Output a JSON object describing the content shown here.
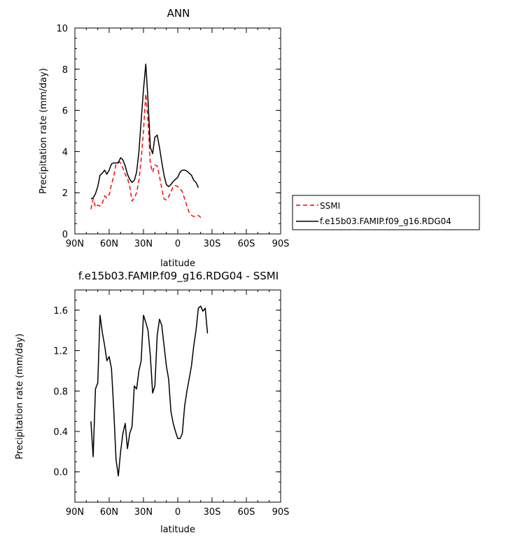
{
  "chart_data": [
    {
      "type": "line",
      "title": "ANN",
      "xlabel": "latitude",
      "ylabel": "Precipitation rate (mm/day)",
      "xlim": [
        90,
        -90
      ],
      "ylim": [
        0,
        10
      ],
      "xticks": [
        {
          "v": 90,
          "label": "90N"
        },
        {
          "v": 60,
          "label": "60N"
        },
        {
          "v": 30,
          "label": "30N"
        },
        {
          "v": 0,
          "label": "0"
        },
        {
          "v": -30,
          "label": "30S"
        },
        {
          "v": -60,
          "label": "60S"
        },
        {
          "v": -90,
          "label": "90S"
        }
      ],
      "yticks": [
        {
          "v": 0,
          "label": "0"
        },
        {
          "v": 2,
          "label": "2"
        },
        {
          "v": 4,
          "label": "4"
        },
        {
          "v": 6,
          "label": "6"
        },
        {
          "v": 8,
          "label": "8"
        },
        {
          "v": 10,
          "label": "10"
        }
      ],
      "legend_position": "right",
      "series": [
        {
          "name": "SSMI",
          "color": "#ff0000",
          "dash": "dashed",
          "points": [
            [
              76,
              1.2
            ],
            [
              74,
              1.7
            ],
            [
              72,
              1.3
            ],
            [
              70,
              1.4
            ],
            [
              68,
              1.35
            ],
            [
              66,
              1.5
            ],
            [
              64,
              1.85
            ],
            [
              62,
              1.75
            ],
            [
              60,
              1.9
            ],
            [
              58,
              2.4
            ],
            [
              56,
              2.8
            ],
            [
              54,
              3.4
            ],
            [
              52,
              3.5
            ],
            [
              50,
              3.45
            ],
            [
              48,
              3.2
            ],
            [
              46,
              2.9
            ],
            [
              44,
              2.7
            ],
            [
              42,
              2.3
            ],
            [
              40,
              1.6
            ],
            [
              38,
              1.75
            ],
            [
              36,
              2.0
            ],
            [
              34,
              2.6
            ],
            [
              32,
              3.6
            ],
            [
              30,
              5.0
            ],
            [
              28,
              6.8
            ],
            [
              26,
              5.5
            ],
            [
              24,
              3.4
            ],
            [
              22,
              3.0
            ],
            [
              20,
              3.35
            ],
            [
              18,
              3.3
            ],
            [
              16,
              2.8
            ],
            [
              14,
              2.2
            ],
            [
              12,
              1.7
            ],
            [
              10,
              1.65
            ],
            [
              8,
              1.8
            ],
            [
              6,
              2.05
            ],
            [
              4,
              2.3
            ],
            [
              2,
              2.35
            ],
            [
              0,
              2.3
            ],
            [
              -2,
              2.2
            ],
            [
              -4,
              2.05
            ],
            [
              -6,
              1.7
            ],
            [
              -8,
              1.35
            ],
            [
              -10,
              1.05
            ],
            [
              -12,
              0.9
            ],
            [
              -14,
              0.85
            ],
            [
              -16,
              0.85
            ],
            [
              -18,
              0.9
            ],
            [
              -20,
              0.8
            ],
            [
              -22,
              0.7
            ]
          ]
        },
        {
          "name": "f.e15b03.FAMIP.f09_g16.RDG04",
          "color": "#000000",
          "dash": "solid",
          "points": [
            [
              76,
              1.7
            ],
            [
              74,
              1.75
            ],
            [
              72,
              1.95
            ],
            [
              70,
              2.3
            ],
            [
              68,
              2.85
            ],
            [
              66,
              2.95
            ],
            [
              64,
              3.1
            ],
            [
              62,
              2.9
            ],
            [
              60,
              3.1
            ],
            [
              58,
              3.4
            ],
            [
              56,
              3.45
            ],
            [
              54,
              3.45
            ],
            [
              52,
              3.45
            ],
            [
              50,
              3.7
            ],
            [
              48,
              3.6
            ],
            [
              46,
              3.3
            ],
            [
              44,
              2.9
            ],
            [
              42,
              2.65
            ],
            [
              40,
              2.5
            ],
            [
              38,
              2.6
            ],
            [
              36,
              3.0
            ],
            [
              34,
              4.0
            ],
            [
              32,
              5.5
            ],
            [
              30,
              7.0
            ],
            [
              28,
              8.25
            ],
            [
              26,
              6.5
            ],
            [
              24,
              4.2
            ],
            [
              22,
              3.9
            ],
            [
              20,
              4.7
            ],
            [
              18,
              4.8
            ],
            [
              16,
              4.2
            ],
            [
              14,
              3.5
            ],
            [
              12,
              2.85
            ],
            [
              10,
              2.4
            ],
            [
              8,
              2.3
            ],
            [
              6,
              2.4
            ],
            [
              4,
              2.55
            ],
            [
              2,
              2.65
            ],
            [
              0,
              2.75
            ],
            [
              -2,
              3.0
            ],
            [
              -4,
              3.1
            ],
            [
              -6,
              3.1
            ],
            [
              -8,
              3.05
            ],
            [
              -10,
              2.95
            ],
            [
              -12,
              2.85
            ],
            [
              -14,
              2.6
            ],
            [
              -16,
              2.5
            ],
            [
              -18,
              2.25
            ]
          ]
        }
      ]
    },
    {
      "type": "line",
      "title": "f.e15b03.FAMIP.f09_g16.RDG04 - SSMI",
      "xlabel": "latitude",
      "ylabel": "Precipitation rate (mm/day)",
      "xlim": [
        90,
        -90
      ],
      "ylim": [
        -0.3,
        1.8
      ],
      "xticks": [
        {
          "v": 90,
          "label": "90N"
        },
        {
          "v": 60,
          "label": "60N"
        },
        {
          "v": 30,
          "label": "30N"
        },
        {
          "v": 0,
          "label": "0"
        },
        {
          "v": -30,
          "label": "30S"
        },
        {
          "v": -60,
          "label": "60S"
        },
        {
          "v": -90,
          "label": "90S"
        }
      ],
      "yticks": [
        {
          "v": 0.0,
          "label": "0.0"
        },
        {
          "v": 0.4,
          "label": "0.4"
        },
        {
          "v": 0.8,
          "label": "0.8"
        },
        {
          "v": 1.2,
          "label": "1.2"
        },
        {
          "v": 1.6,
          "label": "1.6"
        }
      ],
      "series": [
        {
          "name": "",
          "color": "#000000",
          "dash": "solid",
          "points": [
            [
              76,
              0.5
            ],
            [
              74,
              0.15
            ],
            [
              72,
              0.82
            ],
            [
              70,
              0.88
            ],
            [
              68,
              1.55
            ],
            [
              66,
              1.38
            ],
            [
              64,
              1.25
            ],
            [
              62,
              1.1
            ],
            [
              60,
              1.14
            ],
            [
              58,
              1.02
            ],
            [
              56,
              0.62
            ],
            [
              54,
              0.12
            ],
            [
              52,
              -0.04
            ],
            [
              50,
              0.2
            ],
            [
              48,
              0.38
            ],
            [
              46,
              0.48
            ],
            [
              44,
              0.23
            ],
            [
              42,
              0.38
            ],
            [
              40,
              0.45
            ],
            [
              38,
              0.85
            ],
            [
              36,
              0.82
            ],
            [
              34,
              1.0
            ],
            [
              32,
              1.1
            ],
            [
              30,
              1.55
            ],
            [
              28,
              1.48
            ],
            [
              26,
              1.4
            ],
            [
              24,
              1.15
            ],
            [
              22,
              0.78
            ],
            [
              20,
              0.85
            ],
            [
              18,
              1.35
            ],
            [
              16,
              1.51
            ],
            [
              14,
              1.45
            ],
            [
              12,
              1.25
            ],
            [
              10,
              1.05
            ],
            [
              8,
              0.92
            ],
            [
              6,
              0.6
            ],
            [
              4,
              0.48
            ],
            [
              2,
              0.4
            ],
            [
              0,
              0.33
            ],
            [
              -2,
              0.33
            ],
            [
              -4,
              0.38
            ],
            [
              -6,
              0.65
            ],
            [
              -8,
              0.8
            ],
            [
              -10,
              0.92
            ],
            [
              -12,
              1.05
            ],
            [
              -14,
              1.25
            ],
            [
              -16,
              1.4
            ],
            [
              -18,
              1.62
            ],
            [
              -20,
              1.64
            ],
            [
              -22,
              1.59
            ],
            [
              -24,
              1.62
            ],
            [
              -26,
              1.37
            ]
          ]
        }
      ]
    }
  ]
}
